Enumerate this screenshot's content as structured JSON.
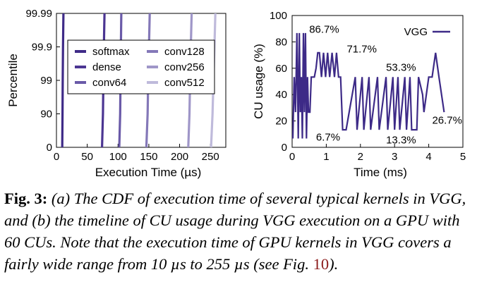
{
  "chart_data": [
    {
      "type": "line",
      "subtype": "cdf",
      "xlabel": "Execution Time (µs)",
      "ylabel": "Percentile",
      "xlim": [
        0,
        275
      ],
      "x_ticks": [
        0,
        50,
        100,
        150,
        200,
        250
      ],
      "y_ticks": [
        "0",
        "90",
        "99",
        "99.9",
        "99.99"
      ],
      "y_scale": "log-percentile",
      "legend_position": "top-center",
      "series": [
        {
          "name": "softmax",
          "color": "#3f2b88",
          "points": [
            [
              9.4,
              0
            ],
            [
              9.8,
              90
            ],
            [
              10.2,
              99
            ],
            [
              10.7,
              99.9
            ],
            [
              11.3,
              99.99
            ]
          ]
        },
        {
          "name": "dense",
          "color": "#4b3592",
          "points": [
            [
              74,
              0
            ],
            [
              75.5,
              90
            ],
            [
              76.2,
              99
            ],
            [
              77,
              99.9
            ],
            [
              78,
              99.99
            ]
          ]
        },
        {
          "name": "conv64",
          "color": "#6a5aa8",
          "points": [
            [
              102,
              0
            ],
            [
              103.5,
              90
            ],
            [
              104,
              99
            ],
            [
              104.6,
              99.9
            ],
            [
              105.3,
              99.99
            ]
          ]
        },
        {
          "name": "conv128",
          "color": "#8478b8",
          "points": [
            [
              146,
              0
            ],
            [
              148,
              90
            ],
            [
              149,
              99
            ],
            [
              150.2,
              99.9
            ],
            [
              151.5,
              99.99
            ]
          ]
        },
        {
          "name": "conv256",
          "color": "#9f96c8",
          "points": [
            [
              214,
              0
            ],
            [
              216,
              90
            ],
            [
              217,
              99
            ],
            [
              218.2,
              99.9
            ],
            [
              219.5,
              99.99
            ]
          ]
        },
        {
          "name": "conv512",
          "color": "#bfbadb",
          "points": [
            [
              251,
              0
            ],
            [
              253.5,
              90
            ],
            [
              255,
              99
            ],
            [
              256.5,
              99.9
            ],
            [
              258,
              99.99
            ]
          ]
        }
      ]
    },
    {
      "type": "line",
      "xlabel": "Time (ms)",
      "ylabel": "CU usage (%)",
      "xlim": [
        0,
        5
      ],
      "ylim": [
        0,
        100
      ],
      "x_ticks": [
        0,
        1,
        2,
        3,
        4,
        5
      ],
      "y_ticks": [
        0,
        20,
        40,
        60,
        80,
        100
      ],
      "legend_position": "top-right",
      "color": "#3d2a87",
      "series": [
        {
          "name": "VGG",
          "x": [
            0.02,
            0.06,
            0.1,
            0.14,
            0.18,
            0.21,
            0.24,
            0.27,
            0.3,
            0.33,
            0.36,
            0.39,
            0.42,
            0.45,
            0.48,
            0.52,
            0.56,
            0.6,
            0.65,
            0.7,
            0.75,
            0.8,
            0.86,
            0.92,
            0.98,
            1.04,
            1.1,
            1.17,
            1.24,
            1.3,
            1.36,
            1.42,
            1.48,
            1.53,
            1.58,
            1.85,
            1.9,
            2.05,
            2.1,
            2.25,
            2.3,
            2.5,
            2.55,
            2.75,
            2.8,
            2.95,
            3.0,
            3.1,
            3.15,
            3.3,
            3.35,
            3.45,
            3.5,
            3.65,
            3.7,
            3.82,
            3.86,
            4.0,
            4.1,
            4.2,
            4.3,
            4.45
          ],
          "values": [
            6.7,
            53.3,
            26.7,
            86.7,
            6.7,
            86.7,
            26.7,
            53.3,
            6.7,
            86.7,
            26.7,
            86.7,
            6.7,
            53.3,
            26.7,
            26.7,
            53.3,
            53.3,
            53.3,
            60,
            71.7,
            71.7,
            53.3,
            71.7,
            53.3,
            71.7,
            53.3,
            71.7,
            53.3,
            71.7,
            53.3,
            53.3,
            13.3,
            13.3,
            13.3,
            53.3,
            13.3,
            53.3,
            13.3,
            53.3,
            13.3,
            53.3,
            13.3,
            53.3,
            13.3,
            53.3,
            13.3,
            53.3,
            13.3,
            53.3,
            13.3,
            53.3,
            13.3,
            13.3,
            53.3,
            40,
            26.7,
            53.3,
            53.3,
            71.7,
            53.3,
            26.7
          ]
        }
      ],
      "annotations": [
        {
          "text": "86.7%",
          "x": 0.5,
          "y": 87
        },
        {
          "text": "71.7%",
          "x": 1.6,
          "y": 72
        },
        {
          "text": "53.3%",
          "x": 2.75,
          "y": 58
        },
        {
          "text": "6.7%",
          "x": 0.7,
          "y": 5
        },
        {
          "text": "13.3%",
          "x": 2.75,
          "y": 3
        },
        {
          "text": "26.7%",
          "x": 4.1,
          "y": 18
        }
      ]
    }
  ],
  "caption": {
    "label": "Fig. 3:",
    "text_a": "(a) The CDF of execution time of several typical kernels in VGG, and (b) the timeline of CU usage during VGG execution on a GPU with 60 CUs. Note that the execution time of GPU kernels in VGG covers a fairly wide range from 10 µs to 255 µs (see Fig.",
    "ref": "10",
    "text_b": ")."
  }
}
